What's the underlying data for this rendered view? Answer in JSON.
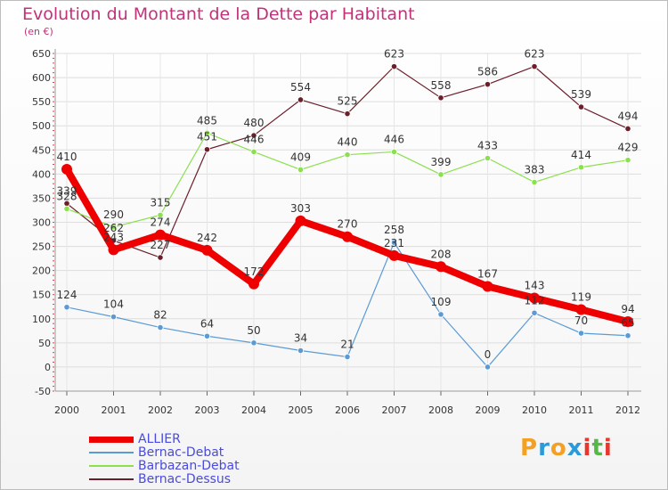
{
  "title": "Evolution du Montant de la Dette par Habitant",
  "subtitle": "(en €)",
  "logo": {
    "text": "Proxiti",
    "colors": [
      "#f4a022",
      "#2a9adb",
      "#f4a022",
      "#2a9adb",
      "#e8362c",
      "#56b947",
      "#e8362c"
    ]
  },
  "chart_data": {
    "type": "line",
    "categories": [
      "2000",
      "2001",
      "2002",
      "2003",
      "2004",
      "2005",
      "2006",
      "2007",
      "2008",
      "2009",
      "2010",
      "2011",
      "2012"
    ],
    "ylim": [
      -50,
      650
    ],
    "yticks": [
      -50,
      0,
      50,
      100,
      150,
      200,
      250,
      300,
      350,
      400,
      450,
      500,
      550,
      600,
      650
    ],
    "grid": true,
    "series": [
      {
        "name": "ALLIER",
        "color": "#ee0000",
        "width": 8,
        "values": [
          410,
          243,
          274,
          242,
          172,
          303,
          270,
          231,
          208,
          167,
          143,
          119,
          94
        ],
        "labels": [
          "410",
          "243",
          "274",
          "242",
          "172",
          "303",
          "270",
          "231",
          "208",
          "167",
          "143",
          "119",
          "94"
        ]
      },
      {
        "name": "Bernac-Debat",
        "color": "#5b9bd5",
        "width": 1.2,
        "values": [
          124,
          104,
          82,
          64,
          50,
          34,
          21,
          258,
          109,
          0,
          112,
          70,
          65
        ],
        "labels": [
          "124",
          "104",
          "82",
          "64",
          "50",
          "34",
          "21",
          "258",
          "109",
          "0",
          "112",
          "70",
          "65"
        ]
      },
      {
        "name": "Barbazan-Debat",
        "color": "#8be04e",
        "width": 1.2,
        "values": [
          328,
          290,
          315,
          485,
          446,
          409,
          440,
          446,
          399,
          433,
          383,
          414,
          429
        ],
        "labels": [
          "328",
          "290",
          "315",
          "485",
          "446",
          "409",
          "440",
          "446",
          "399",
          "433",
          "383",
          "414",
          "429"
        ]
      },
      {
        "name": "Bernac-Dessus",
        "color": "#6b1f2a",
        "width": 1.2,
        "values": [
          339,
          262,
          227,
          451,
          480,
          554,
          525,
          623,
          558,
          586,
          623,
          539,
          494
        ],
        "labels": [
          "339",
          "262",
          "227",
          "451",
          "480",
          "554",
          "525",
          "623",
          "558",
          "586",
          "623",
          "539",
          "494"
        ]
      }
    ]
  }
}
